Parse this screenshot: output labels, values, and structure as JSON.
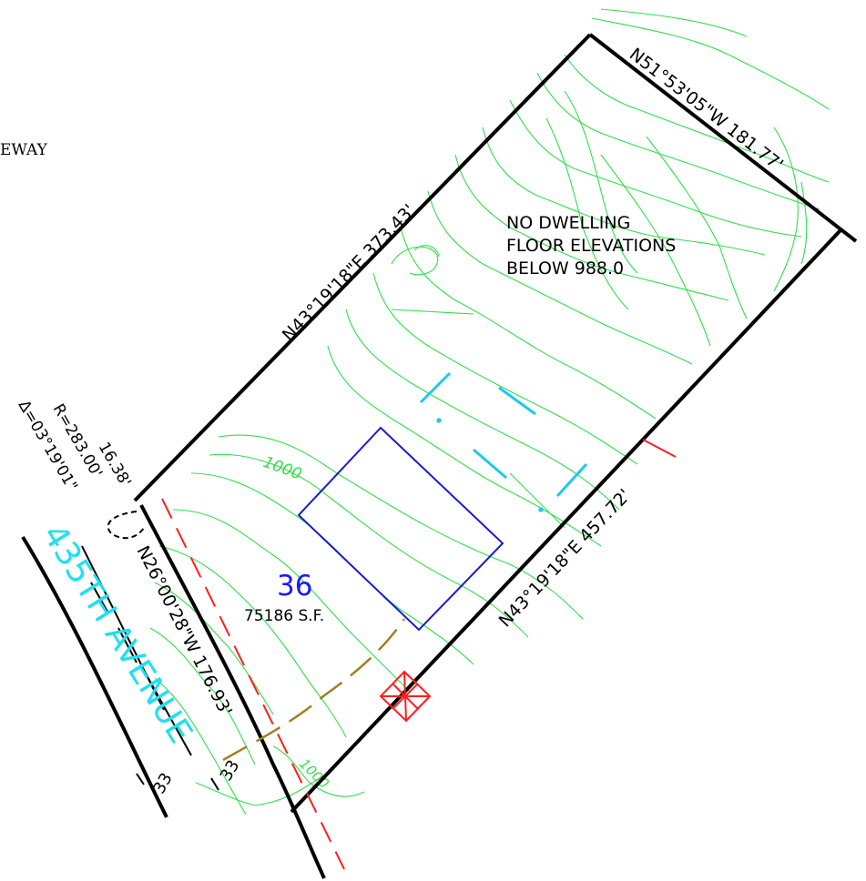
{
  "labels": {
    "driveway_fragment": "EWAY",
    "bearing_northwest_line": "N43°19'18\"E 373.43'",
    "bearing_northeast_line": "N51°53'05\"W 181.77'",
    "bearing_southeast_line": "N43°19'18\"E 457.72'",
    "bearing_frontage_line": "N26°00'28\"W 176.93'",
    "curve_arc_length": "16.38'",
    "curve_radius": "R=283.00'",
    "curve_delta": "Δ=03°19'01\"",
    "street_name": "435TH AVENUE",
    "row_width_left": "33",
    "row_width_right": "33",
    "lot_number": "36",
    "lot_area": "75186 S.F.",
    "note_line_1": "NO DWELLING",
    "note_line_2": "FLOOR ELEVATIONS",
    "note_line_3": "BELOW 988.0",
    "contour_label_1000": "1000",
    "contour_label_lower": "1000"
  },
  "colors": {
    "boundary": "#000000",
    "contours": "#2ee04a",
    "street_name": "#1ee0f0",
    "lot_number": "#1a1aff",
    "building_pad": "#1a1acc",
    "setback_line": "#ff1e1e",
    "driveway": "#a08020",
    "drainage_marks": "#20c8e8",
    "symbol": "#ff1e1e"
  },
  "icons": {
    "septic_marker": "box-with-x-icon"
  }
}
